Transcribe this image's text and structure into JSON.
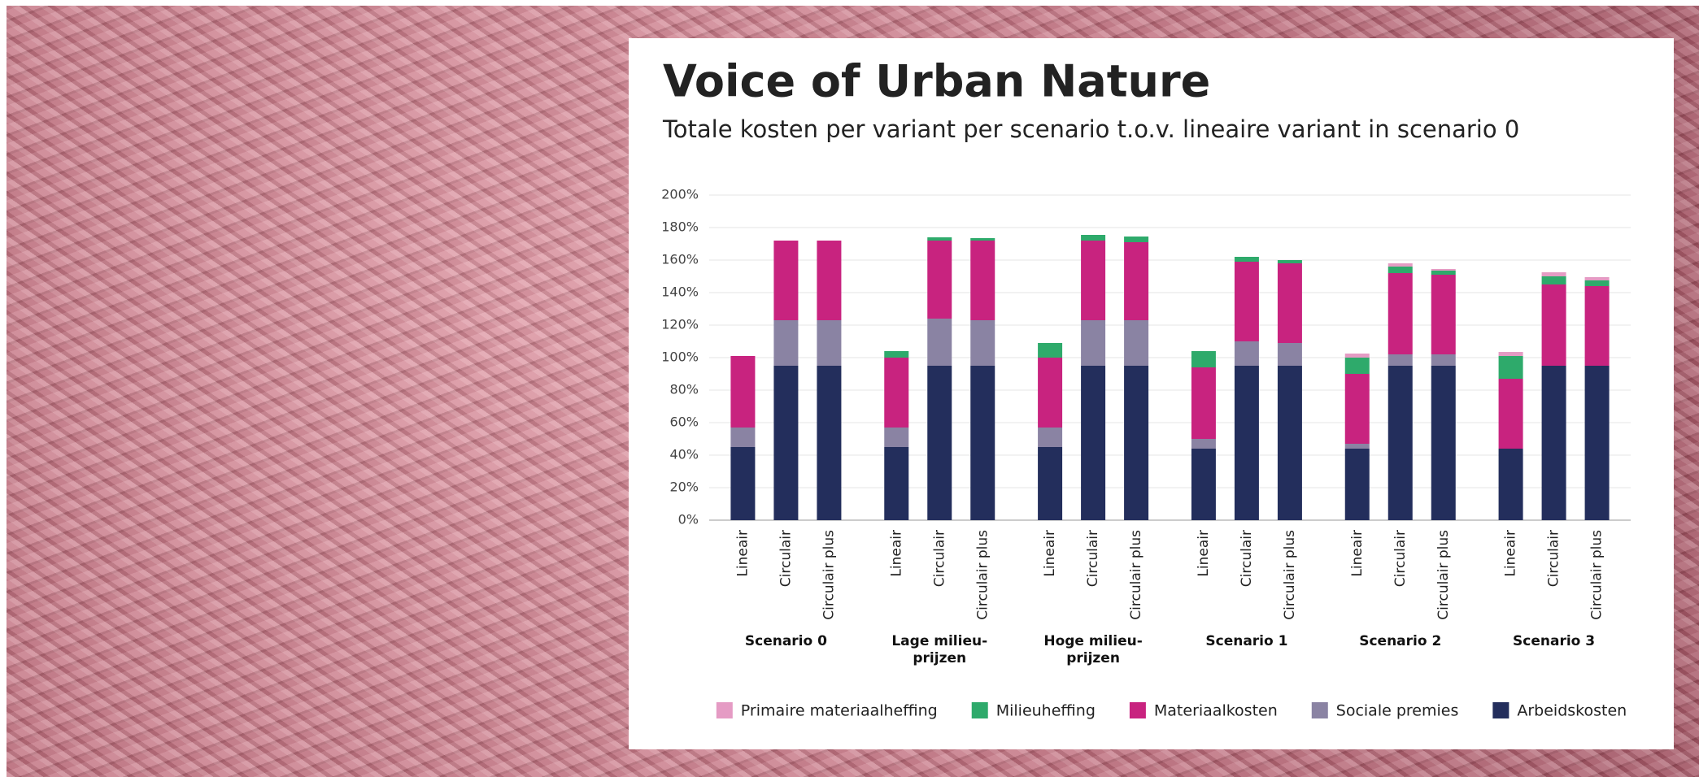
{
  "chart_data": {
    "type": "stacked_bar",
    "title": "Voice of Urban Nature",
    "subtitle": "Totale kosten per variant per scenario t.o.v. lineaire variant in scenario 0",
    "groups": [
      "Scenario 0",
      "Lage milieu-prijzen",
      "Hoge milieu-prijzen",
      "Scenario 1",
      "Scenario 2",
      "Scenario 3"
    ],
    "categories": [
      "Lineair",
      "Circulair",
      "Circulair plus",
      "Lineair",
      "Circulair",
      "Circulair plus",
      "Lineair",
      "Circulair",
      "Circulair plus",
      "Lineair",
      "Circulair",
      "Circulair plus",
      "Lineair",
      "Circulair",
      "Circulair plus",
      "Lineair",
      "Circulair",
      "Circulair plus"
    ],
    "series": [
      {
        "name": "Primaire materiaalheffing",
        "color": "#e59bc4",
        "values": [
          0,
          0,
          0,
          0,
          0,
          0,
          0,
          0,
          0,
          0,
          0,
          0,
          2.5,
          2,
          1,
          2.5,
          2.5,
          2
        ]
      },
      {
        "name": "Milieuheffing",
        "color": "#2eaa6b",
        "values": [
          0,
          0,
          0,
          4,
          2,
          1.5,
          9,
          3.5,
          3.5,
          10,
          3,
          2,
          10,
          4,
          2.5,
          14,
          5,
          3.5
        ]
      },
      {
        "name": "Materiaalkosten",
        "color": "#c8237f",
        "values": [
          44,
          49,
          49,
          43,
          48,
          49,
          43,
          49,
          48,
          44,
          49,
          49,
          43,
          50,
          49,
          43,
          50,
          49
        ]
      },
      {
        "name": "Sociale premies",
        "color": "#8a83a3",
        "values": [
          12,
          28,
          28,
          12,
          29,
          28,
          12,
          28,
          28,
          6,
          15,
          14,
          3,
          7,
          7,
          0,
          0,
          0
        ]
      },
      {
        "name": "Arbeidskosten",
        "color": "#232e5c",
        "values": [
          45,
          95,
          95,
          45,
          95,
          95,
          45,
          95,
          95,
          44,
          95,
          95,
          44,
          95,
          95,
          44,
          95,
          95
        ]
      }
    ],
    "ylim": [
      0,
      200
    ],
    "yticks": [
      {
        "value": 0,
        "label": "0%"
      },
      {
        "value": 20,
        "label": "20%"
      },
      {
        "value": 40,
        "label": "40%"
      },
      {
        "value": 60,
        "label": "60%"
      },
      {
        "value": 80,
        "label": "80%"
      },
      {
        "value": 100,
        "label": "100%"
      },
      {
        "value": 120,
        "label": "120%"
      },
      {
        "value": 140,
        "label": "140%"
      },
      {
        "value": 160,
        "label": "160%"
      },
      {
        "value": 180,
        "label": "180%"
      },
      {
        "value": 200,
        "label": "200%"
      }
    ],
    "grid": true
  }
}
